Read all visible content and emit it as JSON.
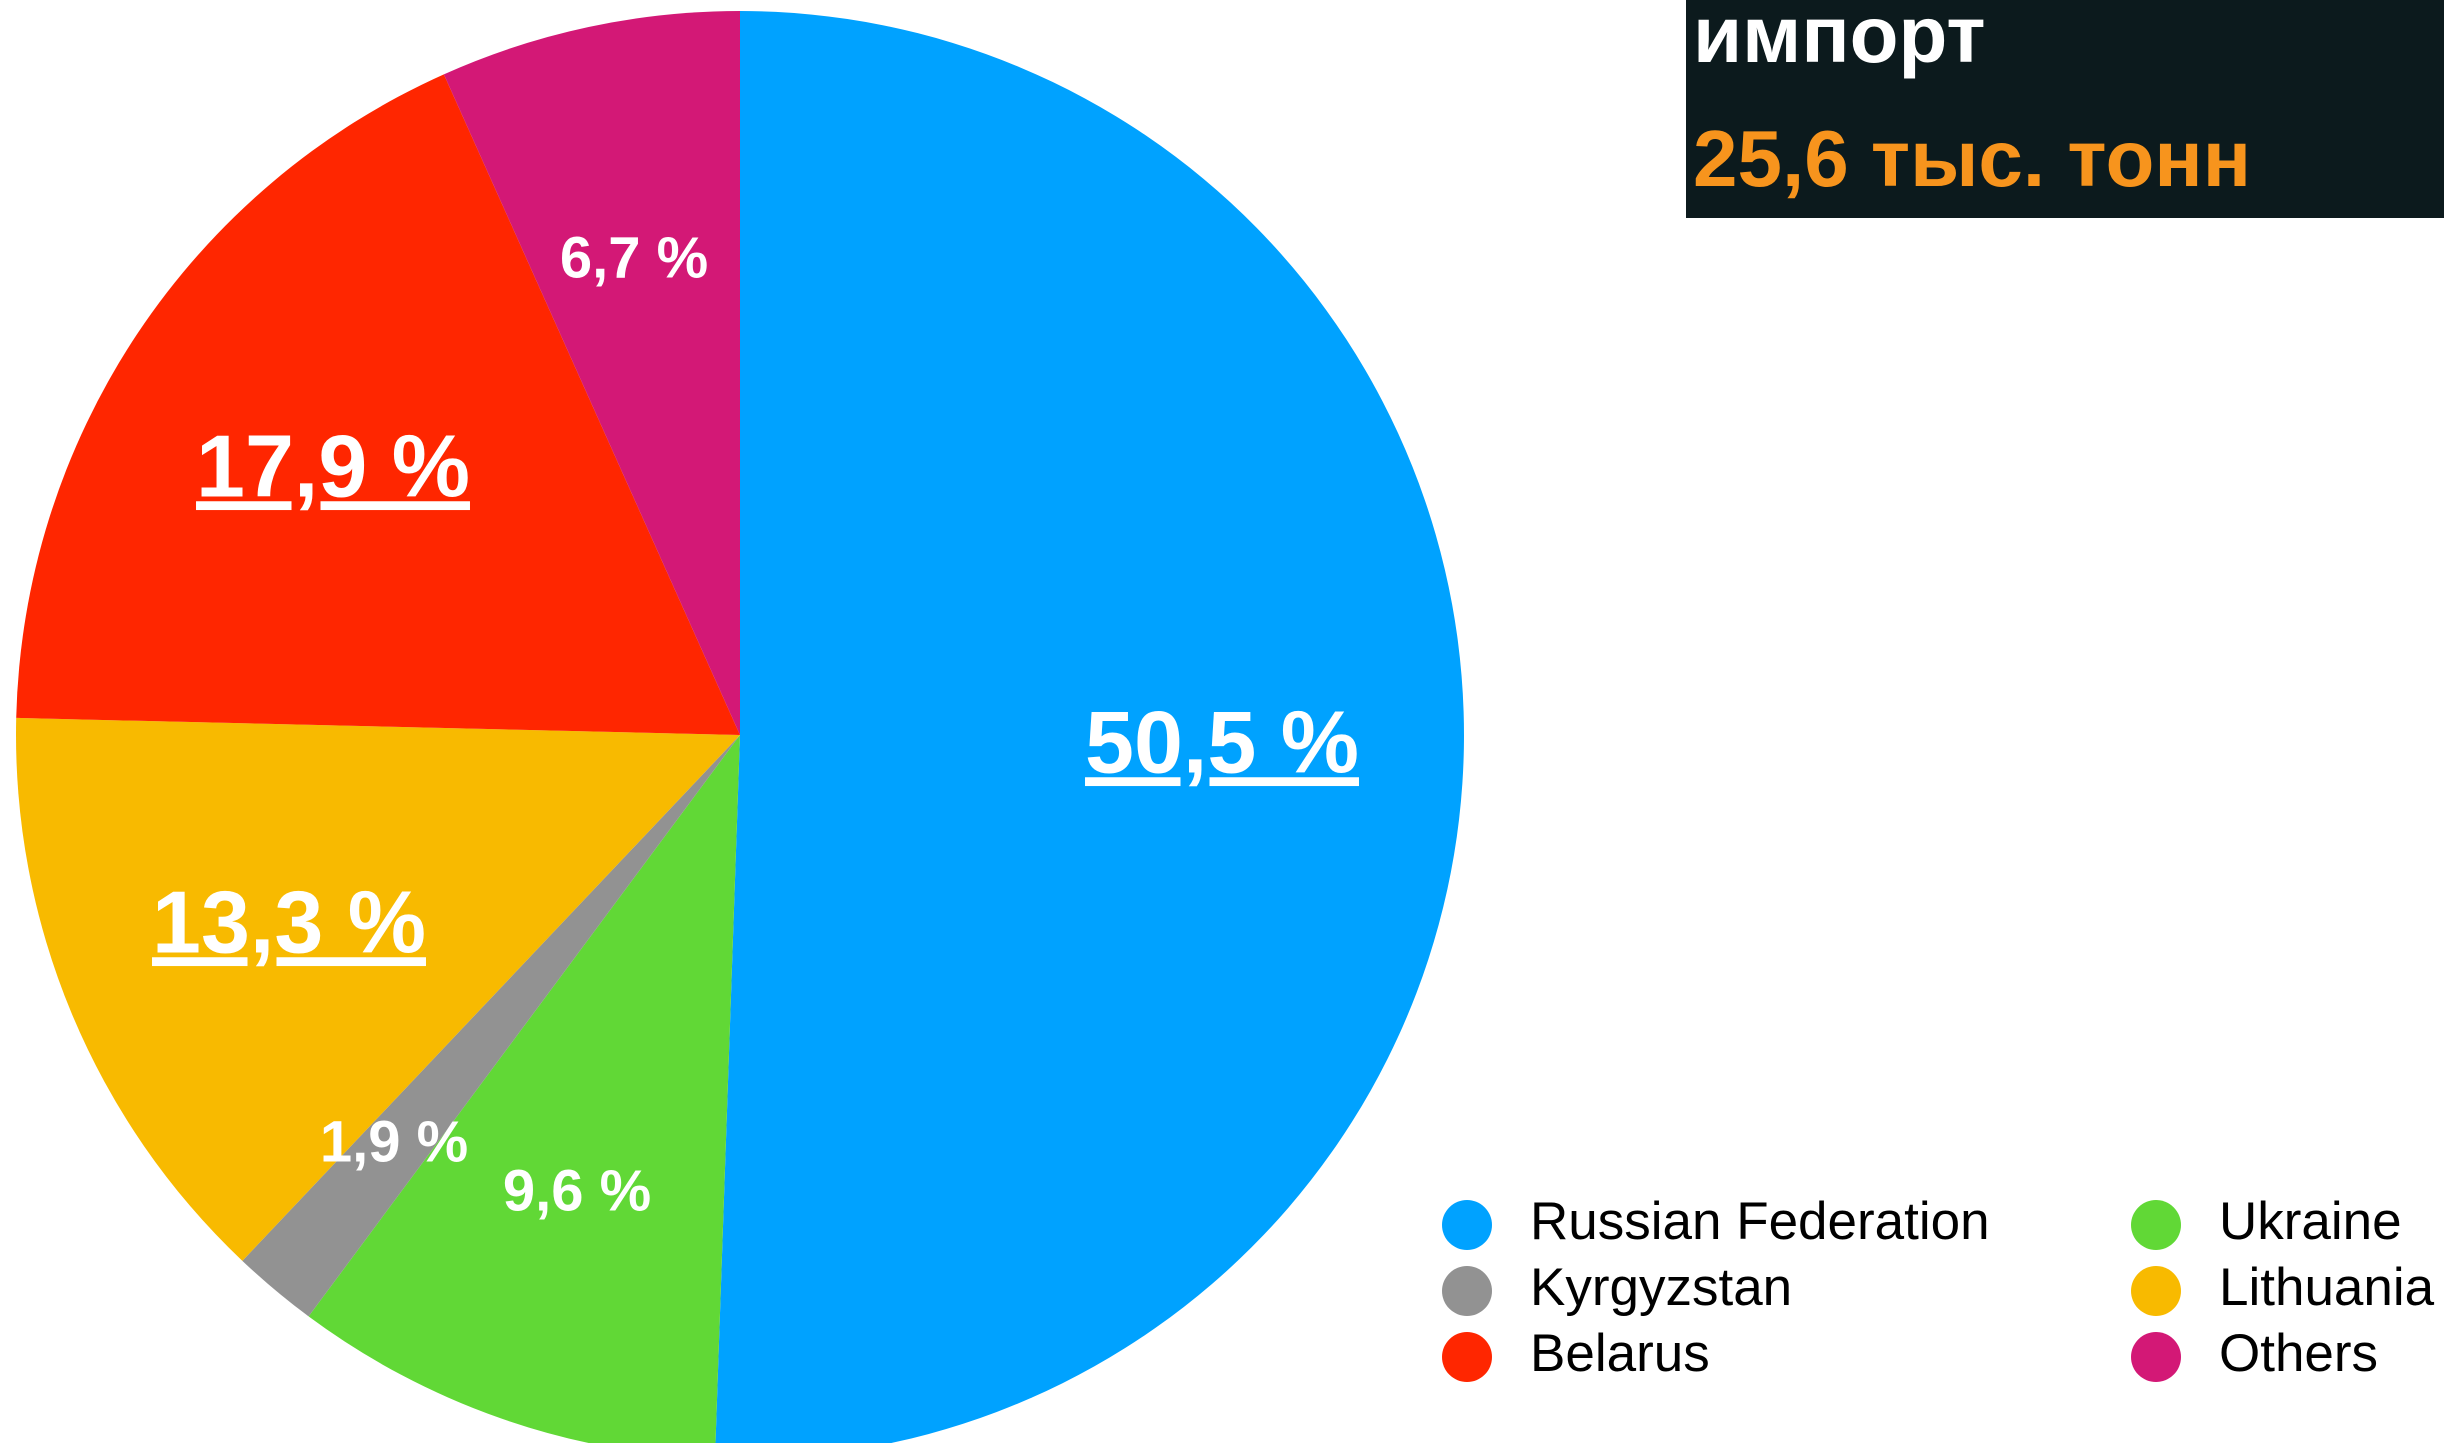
{
  "chart_data": {
    "type": "pie",
    "title": "импорт",
    "subtitle": "25,6 тыс. тонн",
    "categories": [
      "Russian Federation",
      "Ukraine",
      "Kyrgyzstan",
      "Lithuania",
      "Belarus",
      "Others"
    ],
    "values": [
      50.5,
      9.6,
      1.9,
      13.3,
      17.9,
      6.7
    ],
    "value_labels": [
      "50,5 %",
      "9,6 %",
      "1,9 %",
      "13,3 %",
      "17,9 %",
      "6,7 %"
    ],
    "colors": [
      "#00a2ff",
      "#61d836",
      "#929292",
      "#f8ba00",
      "#ff2600",
      "#d31876"
    ]
  }
}
